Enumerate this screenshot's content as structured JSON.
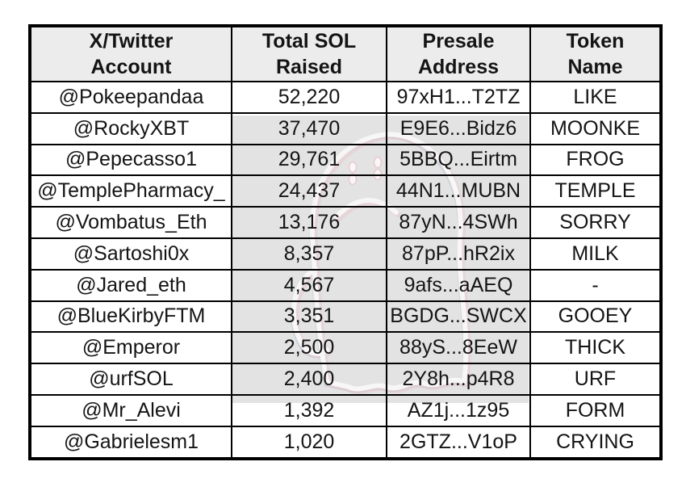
{
  "chart_data": {
    "type": "table",
    "columns": [
      {
        "key": "account",
        "label": "X/Twitter\nAccount"
      },
      {
        "key": "sol-raised",
        "label": "Total SOL\nRaised"
      },
      {
        "key": "presale-address",
        "label": "Presale\nAddress"
      },
      {
        "key": "token-name",
        "label": "Token\nName"
      }
    ],
    "rows": [
      [
        "@Pokeepandaa",
        "52,220",
        "97xH1...T2TZ",
        "LIKE"
      ],
      [
        "@RockyXBT",
        "37,470",
        "E9E6...Bidz6",
        "MOONKE"
      ],
      [
        "@Pepecasso1",
        "29,761",
        "5BBQ...Eirtm",
        "FROG"
      ],
      [
        "@TemplePharmacy_",
        "24,437",
        "44N1...MUBN",
        "TEMPLE"
      ],
      [
        "@Vombatus_Eth",
        "13,176",
        "87yN...4SWh",
        "SORRY"
      ],
      [
        "@Sartoshi0x",
        "8,357",
        "87pP...hR2ix",
        "MILK"
      ],
      [
        "@Jared_eth",
        "4,567",
        "9afs...aAEQ",
        "-"
      ],
      [
        "@BlueKirbyFTM",
        "3,351",
        "BGDG...SWCX",
        "GOOEY"
      ],
      [
        "@Emperor",
        "2,500",
        "88yS...8EeW",
        "THICK"
      ],
      [
        "@urfSOL",
        "2,400",
        "2Y8h...p4R8",
        "URF"
      ],
      [
        "@Mr_Alevi",
        "1,392",
        "AZ1j...1z95",
        "FORM"
      ],
      [
        "@Gabrielesm1",
        "1,020",
        "2GTZ...V1oP",
        "CRYING"
      ]
    ]
  },
  "style": {
    "border_color": "#000000",
    "header_bg": "#ececec",
    "watermark_bg": "#e2e3e2",
    "text_color": "#141414"
  },
  "icons": {
    "watermark": "ghost-doodle-watermark"
  }
}
